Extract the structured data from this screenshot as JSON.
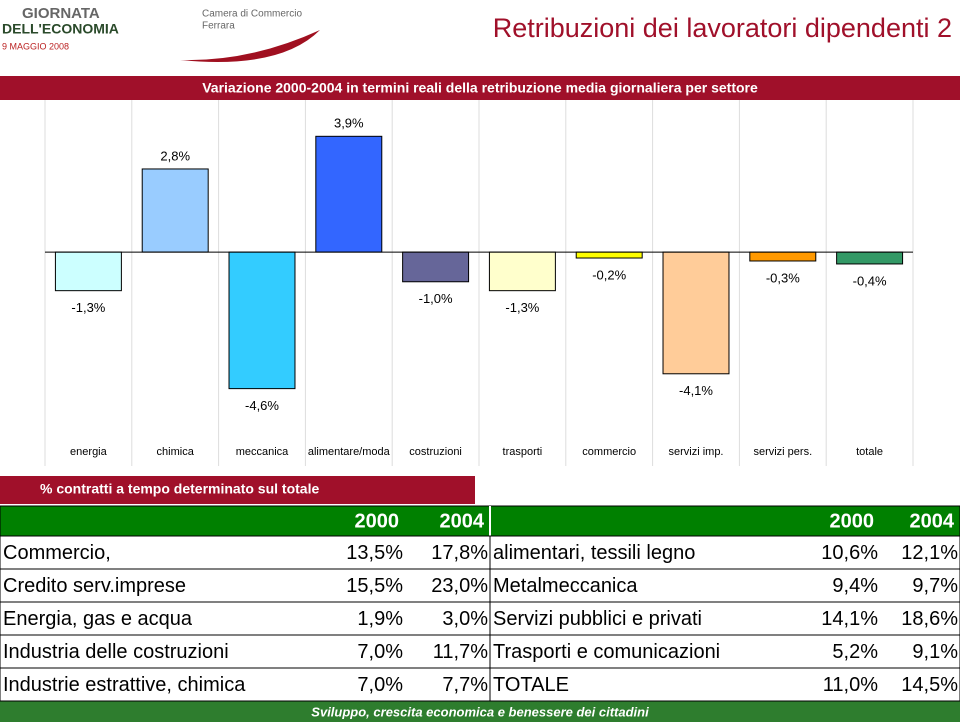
{
  "header": {
    "logo_line1": "GIORNATA",
    "logo_line2": "DELL'ECONOMIA",
    "logo_date": "9 MAGGIO 2008",
    "chamber_line1": "Camera di Commercio",
    "chamber_line2": "Ferrara",
    "title": "Retribuzioni dei lavoratori dipendenti 2"
  },
  "chart_data": {
    "type": "bar",
    "title": "Variazione 2000-2004 in termini reali della retribuzione media giornaliera per settore",
    "categories": [
      "energia",
      "chimica",
      "meccanica",
      "alimentare/moda",
      "costruzioni",
      "trasporti",
      "commercio",
      "servizi imp.",
      "servizi pers.",
      "totale"
    ],
    "values": [
      -1.3,
      2.8,
      -4.6,
      3.9,
      -1.0,
      -1.3,
      -0.2,
      -4.1,
      -0.3,
      -0.4
    ],
    "value_labels": [
      "-1,3%",
      "2,8%",
      "-4,6%",
      "3,9%",
      "-1,0%",
      "-1,3%",
      "-0,2%",
      "-4,1%",
      "-0,3%",
      "-0,4%"
    ],
    "colors": [
      "#ccffff",
      "#99ccff",
      "#33ccff",
      "#3366ff",
      "#666699",
      "#ffffcc",
      "#ffff00",
      "#ffcc99",
      "#ff9900",
      "#339966"
    ],
    "ylim": [
      -5,
      4.5
    ]
  },
  "table": {
    "title": "% contratti a tempo determinato sul totale",
    "columns": [
      "2000",
      "2004",
      "2000",
      "2004"
    ],
    "rows": [
      [
        "Commercio,",
        "13,5%",
        "17,8%",
        "alimentari, tessili legno",
        "10,6%",
        "12,1%"
      ],
      [
        "Credito serv.imprese",
        "15,5%",
        "23,0%",
        "Metalmeccanica",
        "9,4%",
        "9,7%"
      ],
      [
        "Energia, gas e acqua",
        "1,9%",
        "3,0%",
        "Servizi pubblici e privati",
        "14,1%",
        "18,6%"
      ],
      [
        "Industria delle costruzioni",
        "7,0%",
        "11,7%",
        "Trasporti e comunicazioni",
        "5,2%",
        "9,1%"
      ],
      [
        "Industrie estrattive, chimica",
        "7,0%",
        "7,7%",
        "TOTALE",
        "11,0%",
        "14,5%"
      ]
    ]
  },
  "footer": {
    "text": "Sviluppo, crescita economica e benessere dei cittadini"
  }
}
